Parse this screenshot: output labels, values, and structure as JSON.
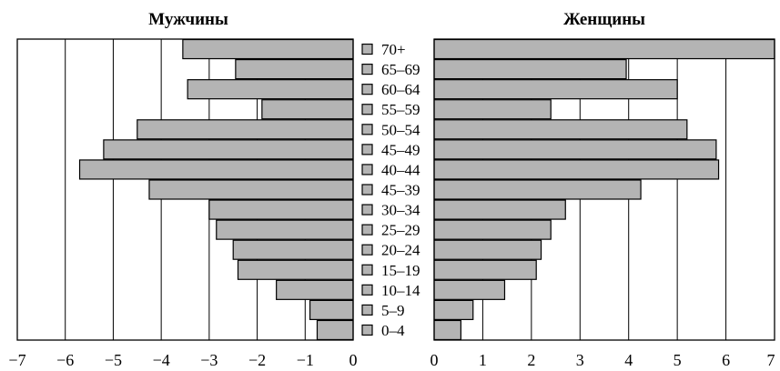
{
  "chart_data": {
    "type": "bar",
    "categories": [
      "70+",
      "65–69",
      "60–64",
      "55–59",
      "50–54",
      "45–49",
      "40–44",
      "45–39",
      "30–34",
      "25–29",
      "20–24",
      "15–19",
      "10–14",
      "5–9",
      "0–4"
    ],
    "series": [
      {
        "name": "Мужчины",
        "values": [
          -3.55,
          -2.45,
          -3.45,
          -1.9,
          -4.5,
          -5.2,
          -5.7,
          -4.25,
          -3.0,
          -2.85,
          -2.5,
          -2.4,
          -1.6,
          -0.9,
          -0.75
        ]
      },
      {
        "name": "Женщины",
        "values": [
          7.0,
          3.95,
          5.0,
          2.4,
          5.2,
          5.8,
          5.85,
          4.25,
          2.7,
          2.4,
          2.2,
          2.1,
          1.45,
          0.8,
          0.55
        ]
      }
    ],
    "left_panel": {
      "title": "Мужчины",
      "xlim": [
        -7,
        0
      ],
      "ticks": [
        "−7",
        "−6",
        "−5",
        "−4",
        "−3",
        "−2",
        "−1",
        "0"
      ]
    },
    "right_panel": {
      "title": "Женщины",
      "xlim": [
        0,
        7
      ],
      "ticks": [
        "0",
        "1",
        "2",
        "3",
        "4",
        "5",
        "6",
        "7"
      ]
    },
    "grid": true,
    "legend": "none",
    "colors": {
      "bar_fill": "#b4b4b4",
      "bar_stroke": "#000000",
      "grid": "#000000"
    }
  }
}
